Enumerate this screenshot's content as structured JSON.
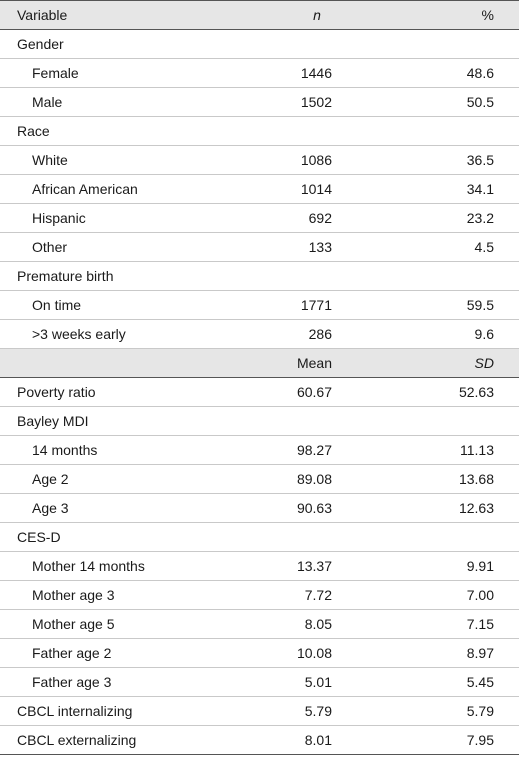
{
  "header1": {
    "variable": "Variable",
    "col1": "n",
    "col2": "%"
  },
  "section1": [
    {
      "label": "Gender",
      "group": true
    },
    {
      "label": "Female",
      "a": "1446",
      "b": "48.6"
    },
    {
      "label": "Male",
      "a": "1502",
      "b": "50.5"
    },
    {
      "label": "Race",
      "group": true
    },
    {
      "label": "White",
      "a": "1086",
      "b": "36.5"
    },
    {
      "label": "African American",
      "a": "1014",
      "b": "34.1"
    },
    {
      "label": "Hispanic",
      "a": "692",
      "b": "23.2"
    },
    {
      "label": "Other",
      "a": "133",
      "b": "4.5"
    },
    {
      "label": "Premature birth",
      "group": true
    },
    {
      "label": "On time",
      "a": "1771",
      "b": "59.5"
    },
    {
      "label": ">3 weeks early",
      "a": "286",
      "b": "9.6"
    }
  ],
  "header2": {
    "variable": "",
    "col1": "Mean",
    "col2": "SD"
  },
  "section2": [
    {
      "label": "Poverty ratio",
      "a": "60.67",
      "b": "52.63"
    },
    {
      "label": "Bayley MDI",
      "group": true
    },
    {
      "label": "14 months",
      "a": "98.27",
      "b": "11.13"
    },
    {
      "label": "Age 2",
      "a": "89.08",
      "b": "13.68"
    },
    {
      "label": "Age 3",
      "a": "90.63",
      "b": "12.63"
    },
    {
      "label": "CES-D",
      "group": true
    },
    {
      "label": "Mother 14 months",
      "a": "13.37",
      "b": "9.91"
    },
    {
      "label": "Mother age 3",
      "a": "7.72",
      "b": "7.00"
    },
    {
      "label": "Mother age 5",
      "a": "8.05",
      "b": "7.15"
    },
    {
      "label": "Father age 2",
      "a": "10.08",
      "b": "8.97"
    },
    {
      "label": "Father age 3",
      "a": "5.01",
      "b": "5.45"
    },
    {
      "label": "CBCL internalizing",
      "a": "5.79",
      "b": "5.79"
    },
    {
      "label": "CBCL externalizing",
      "a": "8.01",
      "b": "7.95"
    }
  ]
}
